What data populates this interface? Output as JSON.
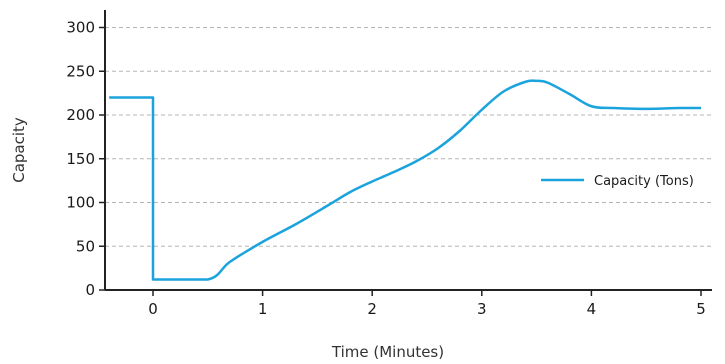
{
  "chart_data": {
    "type": "line",
    "xlabel": "Time (Minutes)",
    "ylabel": "Capacity",
    "xlim": [
      -0.4,
      5.1
    ],
    "ylim": [
      0,
      310
    ],
    "x_ticks": [
      0,
      1,
      2,
      3,
      4,
      5
    ],
    "x_tick_labels": [
      "0",
      "1",
      "2",
      "3",
      "4",
      "5"
    ],
    "y_ticks": [
      0,
      50,
      100,
      150,
      200,
      250,
      300
    ],
    "y_tick_labels": [
      "0",
      "50",
      "100",
      "150",
      "200",
      "250",
      "300"
    ],
    "grid": "horizontal dashed",
    "legend_position": "right",
    "series": [
      {
        "name": "Capacity (Tons)",
        "color": "#1aa3dc",
        "x": [
          -0.4,
          0.0,
          0.0,
          0.5,
          0.7,
          1.0,
          1.3,
          1.6,
          1.8,
          2.0,
          2.2,
          2.4,
          2.6,
          2.8,
          3.0,
          3.2,
          3.4,
          3.5,
          3.6,
          3.8,
          4.0,
          4.2,
          4.5,
          4.8,
          5.0
        ],
        "y": [
          220,
          220,
          12,
          12,
          32,
          55,
          75,
          97,
          112,
          124,
          135,
          147,
          162,
          182,
          206,
          227,
          238,
          239,
          237,
          224,
          210,
          208,
          207,
          208,
          208
        ]
      }
    ]
  }
}
